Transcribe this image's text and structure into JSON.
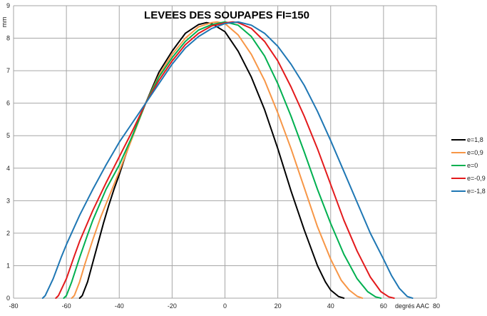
{
  "chart_data": {
    "type": "line",
    "title": "LEVEES DES SOUPAPES FI=150",
    "xlabel": "degrés AAC",
    "ylabel": "mm",
    "xlim": [
      -80,
      80
    ],
    "ylim": [
      0,
      9
    ],
    "x_ticks": [
      -80,
      -60,
      -40,
      -20,
      0,
      20,
      40,
      60,
      80
    ],
    "y_ticks": [
      0,
      1,
      2,
      3,
      4,
      5,
      6,
      7,
      8,
      9
    ],
    "grid": true,
    "legend_position": "right",
    "series": [
      {
        "name": "e=1,8",
        "color": "#000000",
        "points": [
          [
            -55,
            0
          ],
          [
            -54,
            0.08
          ],
          [
            -52,
            0.5
          ],
          [
            -50,
            1.1
          ],
          [
            -48,
            1.7
          ],
          [
            -46,
            2.3
          ],
          [
            -44,
            2.85
          ],
          [
            -42,
            3.35
          ],
          [
            -40,
            3.8
          ],
          [
            -38,
            4.3
          ],
          [
            -35,
            5.0
          ],
          [
            -30,
            6.0
          ],
          [
            -25,
            6.95
          ],
          [
            -20,
            7.6
          ],
          [
            -15,
            8.15
          ],
          [
            -10,
            8.42
          ],
          [
            -7,
            8.48
          ],
          [
            -5,
            8.45
          ],
          [
            0,
            8.2
          ],
          [
            5,
            7.6
          ],
          [
            10,
            6.8
          ],
          [
            15,
            5.8
          ],
          [
            20,
            4.6
          ],
          [
            25,
            3.3
          ],
          [
            30,
            2.1
          ],
          [
            35,
            1.0
          ],
          [
            38,
            0.5
          ],
          [
            40,
            0.25
          ],
          [
            43,
            0.05
          ],
          [
            45,
            0
          ]
        ]
      },
      {
        "name": "e=0,9",
        "color": "#f79646",
        "points": [
          [
            -58,
            0
          ],
          [
            -57,
            0.08
          ],
          [
            -55,
            0.5
          ],
          [
            -53,
            1.05
          ],
          [
            -50,
            1.8
          ],
          [
            -47,
            2.5
          ],
          [
            -45,
            2.9
          ],
          [
            -40,
            3.9
          ],
          [
            -35,
            4.95
          ],
          [
            -30,
            6.0
          ],
          [
            -25,
            6.85
          ],
          [
            -20,
            7.5
          ],
          [
            -15,
            8.0
          ],
          [
            -10,
            8.35
          ],
          [
            -5,
            8.48
          ],
          [
            -3,
            8.5
          ],
          [
            0,
            8.45
          ],
          [
            5,
            8.1
          ],
          [
            10,
            7.5
          ],
          [
            15,
            6.7
          ],
          [
            20,
            5.7
          ],
          [
            25,
            4.6
          ],
          [
            30,
            3.4
          ],
          [
            35,
            2.2
          ],
          [
            40,
            1.2
          ],
          [
            44,
            0.55
          ],
          [
            47,
            0.25
          ],
          [
            50,
            0.06
          ],
          [
            52,
            0
          ]
        ]
      },
      {
        "name": "e=0",
        "color": "#00b050",
        "points": [
          [
            -61,
            0
          ],
          [
            -60,
            0.08
          ],
          [
            -58,
            0.5
          ],
          [
            -55,
            1.25
          ],
          [
            -52,
            1.95
          ],
          [
            -50,
            2.4
          ],
          [
            -45,
            3.35
          ],
          [
            -40,
            4.1
          ],
          [
            -35,
            5.0
          ],
          [
            -30,
            6.0
          ],
          [
            -25,
            6.8
          ],
          [
            -20,
            7.4
          ],
          [
            -15,
            7.9
          ],
          [
            -10,
            8.25
          ],
          [
            -5,
            8.42
          ],
          [
            0,
            8.5
          ],
          [
            5,
            8.4
          ],
          [
            10,
            8.05
          ],
          [
            15,
            7.45
          ],
          [
            20,
            6.6
          ],
          [
            25,
            5.6
          ],
          [
            30,
            4.5
          ],
          [
            35,
            3.35
          ],
          [
            40,
            2.3
          ],
          [
            45,
            1.35
          ],
          [
            50,
            0.6
          ],
          [
            54,
            0.2
          ],
          [
            57,
            0.04
          ],
          [
            59,
            0
          ]
        ]
      },
      {
        "name": "e=-0,9",
        "color": "#e31a1c",
        "points": [
          [
            -64,
            0
          ],
          [
            -63,
            0.08
          ],
          [
            -60,
            0.6
          ],
          [
            -57,
            1.3
          ],
          [
            -55,
            1.75
          ],
          [
            -50,
            2.7
          ],
          [
            -45,
            3.55
          ],
          [
            -40,
            4.35
          ],
          [
            -35,
            5.15
          ],
          [
            -30,
            6.0
          ],
          [
            -25,
            6.7
          ],
          [
            -20,
            7.3
          ],
          [
            -15,
            7.8
          ],
          [
            -10,
            8.15
          ],
          [
            -5,
            8.38
          ],
          [
            0,
            8.47
          ],
          [
            3,
            8.5
          ],
          [
            5,
            8.48
          ],
          [
            10,
            8.3
          ],
          [
            15,
            7.9
          ],
          [
            20,
            7.3
          ],
          [
            25,
            6.5
          ],
          [
            30,
            5.6
          ],
          [
            35,
            4.6
          ],
          [
            40,
            3.5
          ],
          [
            45,
            2.4
          ],
          [
            50,
            1.45
          ],
          [
            55,
            0.65
          ],
          [
            59,
            0.2
          ],
          [
            62,
            0.04
          ],
          [
            64,
            0
          ]
        ]
      },
      {
        "name": "e=-1,8",
        "color": "#1f77b4",
        "points": [
          [
            -69,
            0
          ],
          [
            -68,
            0.08
          ],
          [
            -65,
            0.6
          ],
          [
            -62,
            1.25
          ],
          [
            -60,
            1.65
          ],
          [
            -55,
            2.55
          ],
          [
            -50,
            3.35
          ],
          [
            -45,
            4.1
          ],
          [
            -40,
            4.8
          ],
          [
            -35,
            5.4
          ],
          [
            -30,
            6.0
          ],
          [
            -25,
            6.6
          ],
          [
            -20,
            7.2
          ],
          [
            -15,
            7.7
          ],
          [
            -10,
            8.05
          ],
          [
            -5,
            8.3
          ],
          [
            0,
            8.45
          ],
          [
            5,
            8.5
          ],
          [
            10,
            8.4
          ],
          [
            15,
            8.15
          ],
          [
            20,
            7.75
          ],
          [
            25,
            7.2
          ],
          [
            30,
            6.55
          ],
          [
            35,
            5.75
          ],
          [
            40,
            4.85
          ],
          [
            45,
            3.9
          ],
          [
            50,
            2.95
          ],
          [
            55,
            2.0
          ],
          [
            60,
            1.2
          ],
          [
            63,
            0.7
          ],
          [
            66,
            0.3
          ],
          [
            69,
            0.05
          ],
          [
            71,
            0
          ]
        ]
      }
    ]
  }
}
